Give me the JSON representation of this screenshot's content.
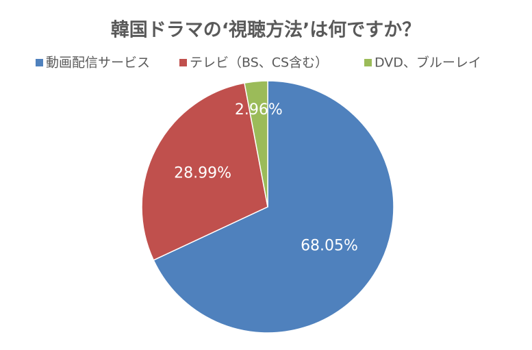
{
  "chart_data": {
    "type": "pie",
    "title": "韓国ドラマの‘視聴方法’は何ですか？",
    "categories": [
      "動画配信サービス",
      "テレビ（BS、CS含む）",
      "DVD、ブルーレイ"
    ],
    "values": [
      68.05,
      28.99,
      2.96
    ],
    "value_labels": [
      "68.05%",
      "28.99%",
      "2.96%"
    ],
    "colors": [
      "#4f81bd",
      "#c0504d",
      "#9bbb59"
    ],
    "legend": "top"
  }
}
